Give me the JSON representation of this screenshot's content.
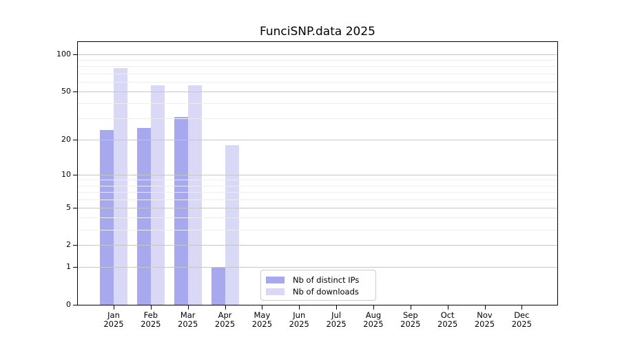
{
  "chart_data": {
    "type": "bar",
    "title": "FunciSNP.data 2025",
    "categories": [
      "Jan",
      "Feb",
      "Mar",
      "Apr",
      "May",
      "Jun",
      "Jul",
      "Aug",
      "Sep",
      "Oct",
      "Nov",
      "Dec"
    ],
    "category_year": "2025",
    "series": [
      {
        "name": "Nb of distinct IPs",
        "color": "#a8a8ef",
        "values": [
          24,
          25,
          31,
          1,
          0,
          0,
          0,
          0,
          0,
          0,
          0,
          0
        ]
      },
      {
        "name": "Nb of downloads",
        "color": "#d9d9f7",
        "values": [
          77,
          56,
          56,
          18,
          0,
          0,
          0,
          0,
          0,
          0,
          0,
          0
        ]
      }
    ],
    "y_axis": {
      "scale": "log10(1+v)",
      "major_ticks": [
        0,
        1,
        2,
        5,
        10,
        20,
        50,
        100
      ],
      "minor_gridlines": [
        3,
        4,
        6,
        7,
        8,
        9,
        30,
        40,
        60,
        70,
        80,
        90
      ],
      "max_value": 126
    },
    "xlabel": "",
    "ylabel": "",
    "grid": true,
    "legend_position": "lower center",
    "colors": {
      "major_grid": "#c6c6c6",
      "minor_grid": "#ededed",
      "spine": "#000000",
      "background": "#ffffff"
    }
  }
}
